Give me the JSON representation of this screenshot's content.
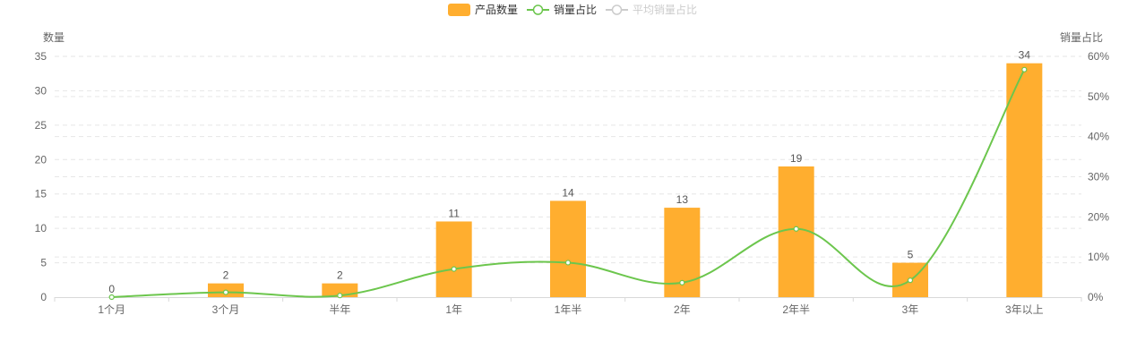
{
  "chart_data": {
    "type": "bar",
    "categories": [
      "1个月",
      "3个月",
      "半年",
      "1年",
      "1年半",
      "2年",
      "2年半",
      "3年",
      "3年以上"
    ],
    "series": [
      {
        "name": "产品数量",
        "type": "bar",
        "axis": "left",
        "values": [
          0,
          2,
          2,
          11,
          14,
          13,
          19,
          5,
          34
        ]
      },
      {
        "name": "销量占比",
        "type": "line",
        "axis": "right",
        "unit": "%",
        "values": [
          0,
          1.2,
          0.4,
          7,
          8.6,
          3.6,
          17,
          4.2,
          56.7
        ]
      }
    ],
    "legend": [
      {
        "name": "产品数量",
        "type": "bar",
        "active": true
      },
      {
        "name": "销量占比",
        "type": "line",
        "active": true
      },
      {
        "name": "平均销量占比",
        "type": "line",
        "active": false
      }
    ],
    "y_left": {
      "label": "数量",
      "min": 0,
      "max": 35,
      "ticks": [
        0,
        5,
        10,
        15,
        20,
        25,
        30,
        35
      ]
    },
    "y_right": {
      "label": "销量占比",
      "min": 0,
      "max": 60,
      "ticks": [
        "0%",
        "10%",
        "20%",
        "30%",
        "40%",
        "50%",
        "60%"
      ]
    },
    "colors": {
      "bar": "#ffae2f",
      "line": "#6cc64d",
      "inactive": "#cccccc",
      "axis_text": "#666666",
      "grid": "#e6e6e6"
    }
  }
}
